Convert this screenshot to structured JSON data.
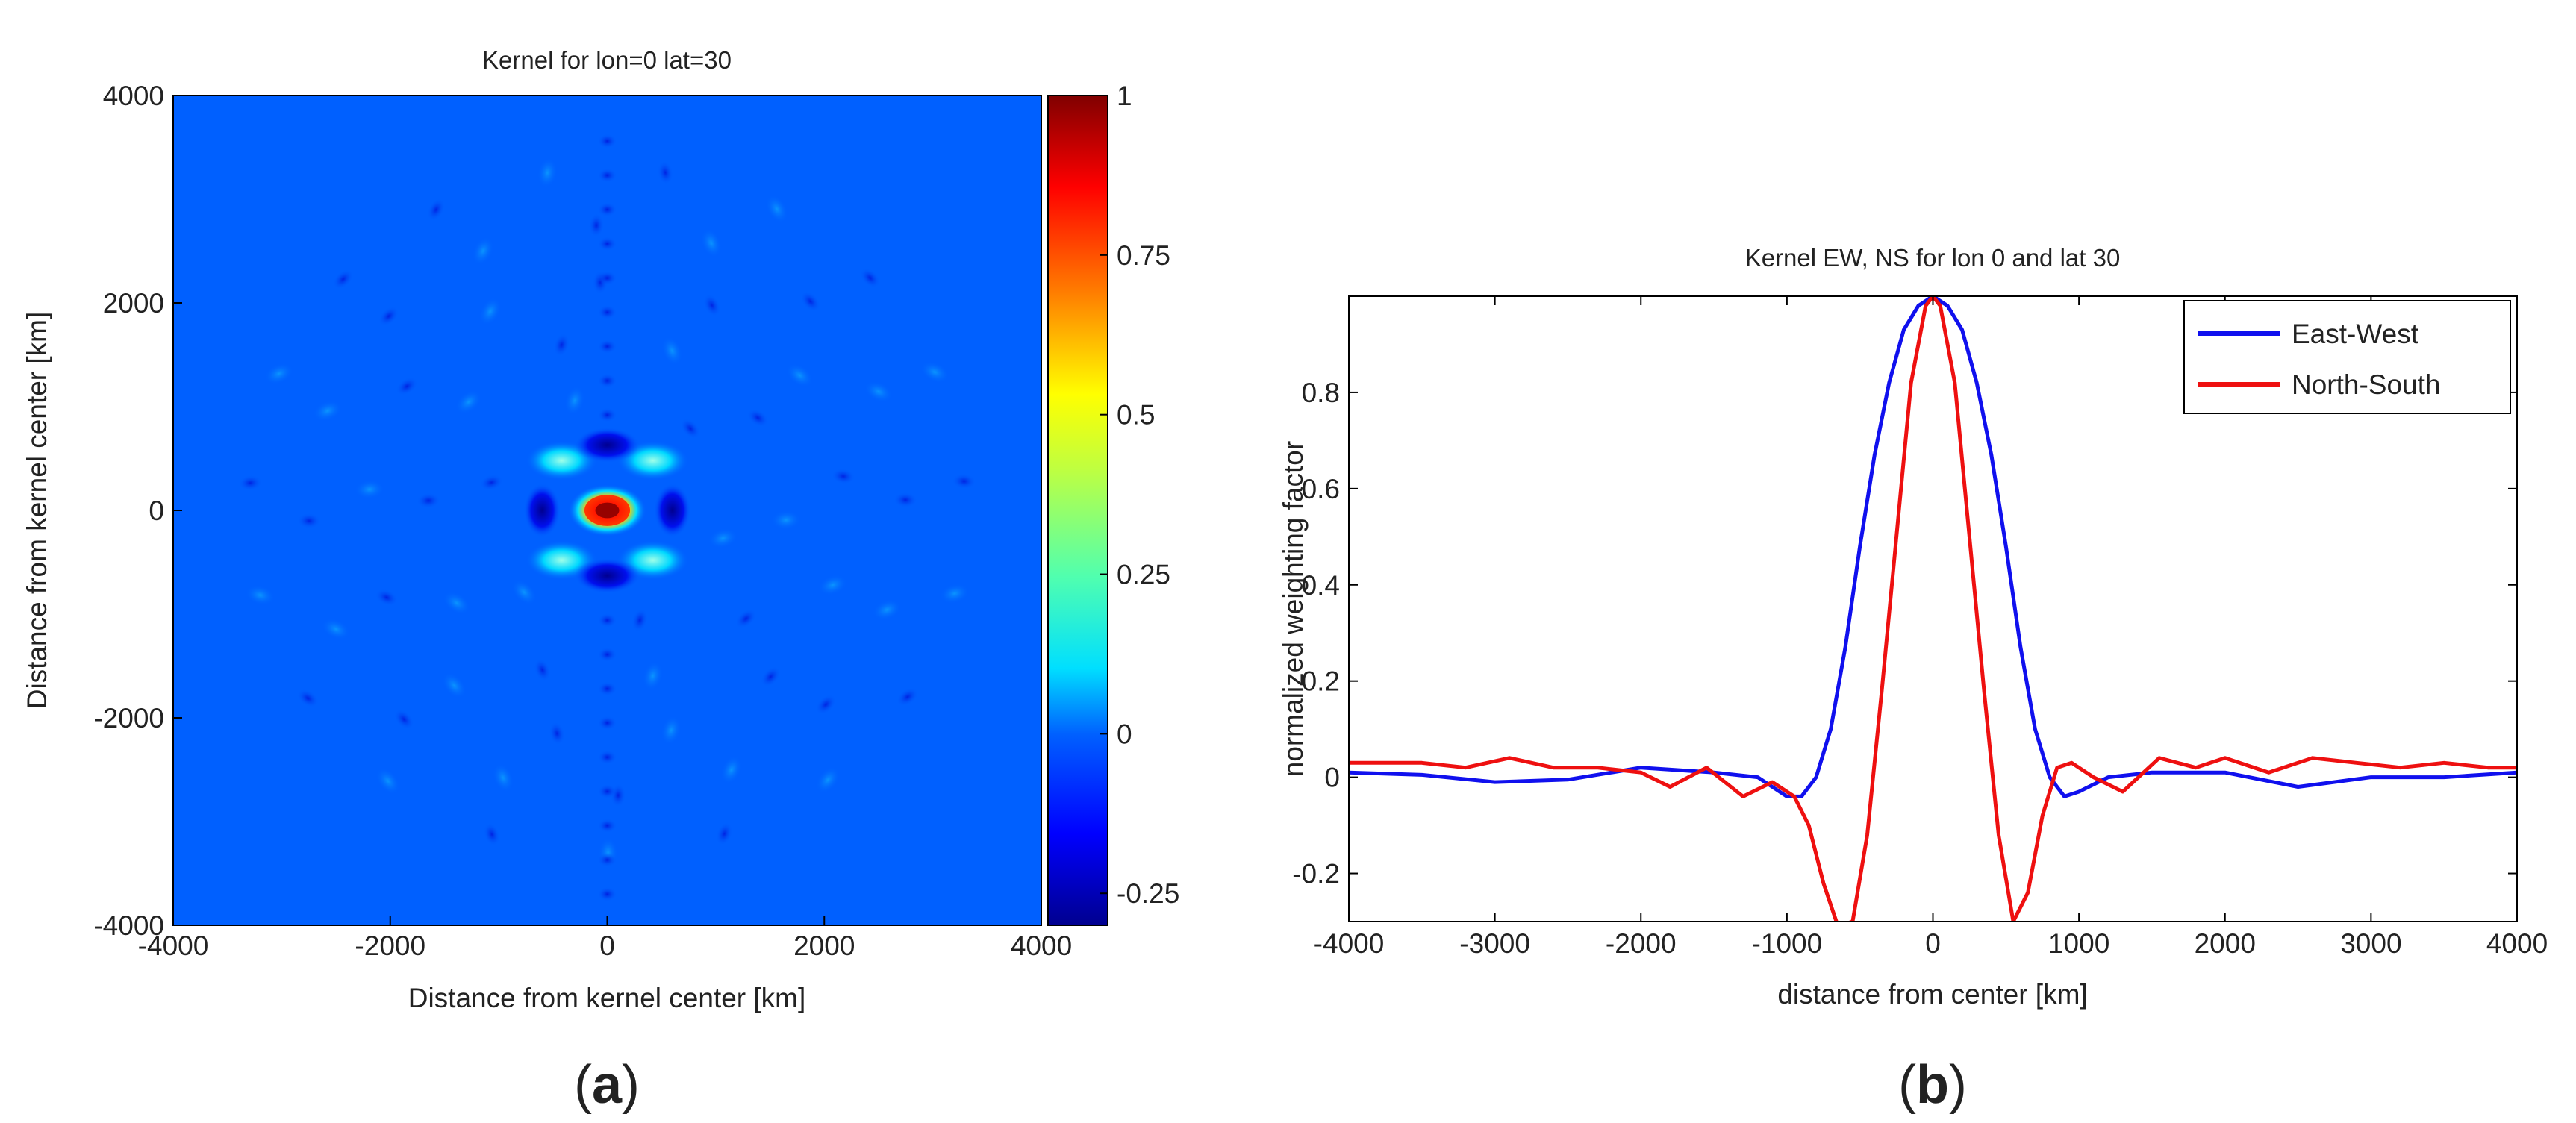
{
  "chart_data": [
    {
      "type": "heatmap",
      "panel_label": "a",
      "title": "Kernel for lon=0 lat=30",
      "xlabel": "Distance from kernel center [km]",
      "ylabel": "Distance from kernel center [km]",
      "xlim": [
        -4000,
        4000
      ],
      "ylim": [
        4000,
        -4000
      ],
      "x_ticks": [
        "-4000",
        "-2000",
        "0",
        "2000",
        "4000"
      ],
      "y_ticks": [
        "-4000",
        "-2000",
        "0",
        "2000",
        "4000"
      ],
      "colorbar": {
        "range": [
          -0.3,
          1
        ],
        "ticks": [
          "1",
          "0.75",
          "0.5",
          "0.25",
          "0",
          "-0.25"
        ],
        "colormap": "jet"
      },
      "features": [
        {
          "x": 0,
          "y": 0,
          "value": 1.0
        },
        {
          "x": -420,
          "y": -480,
          "value": 0.12
        },
        {
          "x": 420,
          "y": -480,
          "value": 0.12
        },
        {
          "x": -420,
          "y": 480,
          "value": 0.12
        },
        {
          "x": 420,
          "y": 480,
          "value": 0.12
        },
        {
          "x": 0,
          "y": -630,
          "value": -0.28
        },
        {
          "x": 0,
          "y": 630,
          "value": -0.28
        },
        {
          "x": -600,
          "y": 0,
          "value": -0.22
        },
        {
          "x": 600,
          "y": 0,
          "value": -0.22
        }
      ]
    },
    {
      "type": "line",
      "panel_label": "b",
      "title": "Kernel EW, NS for lon 0 and lat 30",
      "xlabel": "distance from center [km]",
      "ylabel": "normalized weighting factor",
      "xlim": [
        -4000,
        4000
      ],
      "ylim": [
        -0.3,
        1.0
      ],
      "x_ticks": [
        "-4000",
        "-3000",
        "-2000",
        "-1000",
        "0",
        "1000",
        "2000",
        "3000",
        "4000"
      ],
      "y_ticks": [
        "-0.2",
        "0",
        "0.2",
        "0.4",
        "0.6",
        "0.8"
      ],
      "legend_position": "top-right",
      "series": [
        {
          "name": "East-West",
          "color": "#1010ee",
          "x": [
            -4000,
            -3500,
            -3000,
            -2500,
            -2000,
            -1500,
            -1200,
            -1000,
            -900,
            -800,
            -700,
            -600,
            -500,
            -400,
            -300,
            -200,
            -100,
            0,
            100,
            200,
            300,
            400,
            500,
            600,
            700,
            800,
            900,
            1000,
            1200,
            1500,
            2000,
            2500,
            3000,
            3500,
            4000
          ],
          "y": [
            0.01,
            0.005,
            -0.01,
            -0.005,
            0.02,
            0.01,
            0.0,
            -0.04,
            -0.04,
            0.0,
            0.1,
            0.27,
            0.48,
            0.67,
            0.82,
            0.93,
            0.98,
            1.0,
            0.98,
            0.93,
            0.82,
            0.67,
            0.48,
            0.27,
            0.1,
            0.0,
            -0.04,
            -0.03,
            0.0,
            0.01,
            0.01,
            -0.02,
            0.0,
            0.0,
            0.01
          ]
        },
        {
          "name": "North-South",
          "color": "#ee1010",
          "x": [
            -4000,
            -3500,
            -3200,
            -2900,
            -2600,
            -2300,
            -2000,
            -1800,
            -1550,
            -1300,
            -1100,
            -950,
            -850,
            -750,
            -650,
            -550,
            -450,
            -350,
            -250,
            -150,
            -50,
            0,
            50,
            150,
            250,
            350,
            450,
            550,
            650,
            750,
            850,
            950,
            1100,
            1300,
            1550,
            1800,
            2000,
            2300,
            2600,
            2900,
            3200,
            3500,
            3800,
            4000
          ],
          "y": [
            0.03,
            0.03,
            0.02,
            0.04,
            0.02,
            0.02,
            0.01,
            -0.02,
            0.02,
            -0.04,
            -0.01,
            -0.04,
            -0.1,
            -0.22,
            -0.31,
            -0.3,
            -0.12,
            0.18,
            0.5,
            0.82,
            0.98,
            1.0,
            0.98,
            0.82,
            0.5,
            0.18,
            -0.12,
            -0.3,
            -0.24,
            -0.08,
            0.02,
            0.03,
            0.0,
            -0.03,
            0.04,
            0.02,
            0.04,
            0.01,
            0.04,
            0.03,
            0.02,
            0.03,
            0.02,
            0.02
          ]
        }
      ]
    }
  ]
}
